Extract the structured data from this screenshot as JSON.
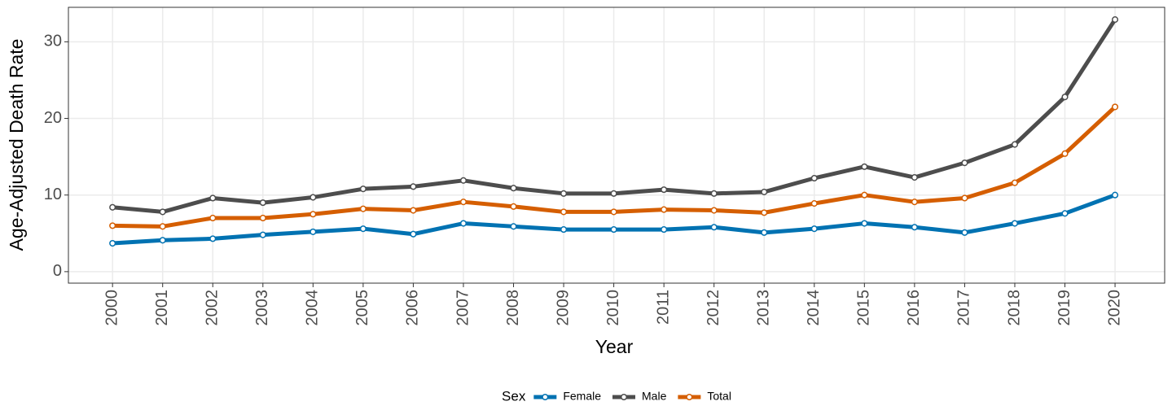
{
  "chart_data": {
    "type": "line",
    "xlabel": "Year",
    "ylabel": "Age-Adjusted Death Rate",
    "x": [
      2000,
      2001,
      2002,
      2003,
      2004,
      2005,
      2006,
      2007,
      2008,
      2009,
      2010,
      2011,
      2012,
      2013,
      2014,
      2015,
      2016,
      2017,
      2018,
      2019,
      2020
    ],
    "series": [
      {
        "name": "Female",
        "color": "#0072B2",
        "values": [
          3.7,
          4.1,
          4.3,
          4.8,
          5.2,
          5.6,
          4.9,
          6.3,
          5.9,
          5.5,
          5.5,
          5.5,
          5.8,
          5.1,
          5.6,
          6.3,
          5.8,
          5.1,
          6.3,
          7.6,
          10.0
        ]
      },
      {
        "name": "Male",
        "color": "#4D4D4D",
        "values": [
          8.4,
          7.8,
          9.6,
          9.0,
          9.7,
          10.8,
          11.1,
          11.9,
          10.9,
          10.2,
          10.2,
          10.7,
          10.2,
          10.4,
          12.2,
          13.7,
          12.3,
          14.2,
          16.6,
          22.8,
          32.9
        ]
      },
      {
        "name": "Total",
        "color": "#D55E00",
        "values": [
          6.0,
          5.9,
          7.0,
          7.0,
          7.5,
          8.2,
          8.0,
          9.1,
          8.5,
          7.8,
          7.8,
          8.1,
          8.0,
          7.7,
          8.9,
          10.0,
          9.1,
          9.6,
          11.6,
          15.4,
          21.5
        ]
      }
    ],
    "xlim": [
      1999.12,
      2020.99
    ],
    "xticks": [
      2000,
      2001,
      2002,
      2003,
      2004,
      2005,
      2006,
      2007,
      2008,
      2009,
      2010,
      2011,
      2012,
      2013,
      2014,
      2015,
      2016,
      2017,
      2018,
      2019,
      2020
    ],
    "ylim": [
      -1.5,
      34.5
    ],
    "yticks": [
      0,
      10,
      20,
      30
    ],
    "grid": true,
    "legend_title": "Sex",
    "legend_position": "bottom"
  }
}
